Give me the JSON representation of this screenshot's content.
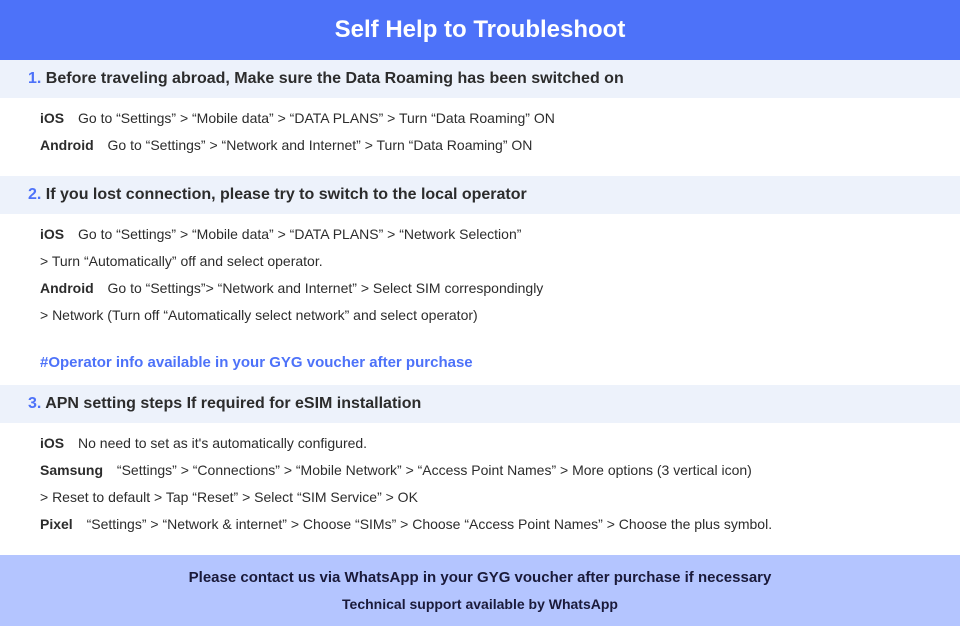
{
  "colors": {
    "header_bg": "#4d72f9",
    "header_text": "#ffffff",
    "section_title_bg": "#edf2fb",
    "accent": "#4d72f9",
    "body_text": "#2c2c2c",
    "footer_bg": "#b4c5ff",
    "footer_text": "#1a1a3a"
  },
  "typography": {
    "header_fontsize": 24,
    "section_title_fontsize": 16,
    "body_fontsize": 14,
    "footer_fontsize": 15
  },
  "header": {
    "title": "Self Help to Troubleshoot"
  },
  "sections": [
    {
      "num": "1.",
      "title_bold": "Before traveling abroad,",
      "title_rest": " Make sure the Data Roaming has been switched on",
      "rows": [
        {
          "platform": "iOS",
          "text": "Go to “Settings” > “Mobile data” > “DATA PLANS” > Turn “Data Roaming” ON"
        },
        {
          "platform": "Android",
          "text": "Go to “Settings” > “Network and Internet” > Turn “Data Roaming” ON"
        }
      ]
    },
    {
      "num": "2.",
      "title_bold": "If you lost connection, please try to switch to the local operator",
      "title_rest": "",
      "rows": [
        {
          "platform": "iOS",
          "text": "Go to “Settings” > “Mobile data” > “DATA PLANS” > “Network Selection”",
          "cont": "> Turn “Automatically” off and select operator."
        },
        {
          "platform": "Android",
          "text": "Go to “Settings”>  “Network and Internet” > Select SIM correspondingly",
          "cont": "> Network (Turn off “Automatically select network” and select operator)"
        }
      ],
      "note": "#Operator info available in your GYG voucher after purchase"
    },
    {
      "num": "3.",
      "title_bold": "APN setting steps If required for eSIM installation",
      "title_rest": "",
      "rows": [
        {
          "platform": "iOS",
          "text": "No need to set as it's automatically configured."
        },
        {
          "platform": "Samsung",
          "text": "“Settings” > “Connections” > “Mobile Network” > “Access Point Names” > More options (3 vertical icon)",
          "cont": "> Reset to default > Tap “Reset” > Select “SIM Service” > OK"
        },
        {
          "platform": "Pixel",
          "text": "“Settings” > “Network & internet” > Choose “SIMs” > Choose “Access Point Names” > Choose the plus symbol."
        }
      ]
    }
  ],
  "footer": {
    "line1": "Please contact us via WhatsApp  in your GYG voucher after purchase if necessary",
    "line2": "Technical support available by WhatsApp"
  }
}
